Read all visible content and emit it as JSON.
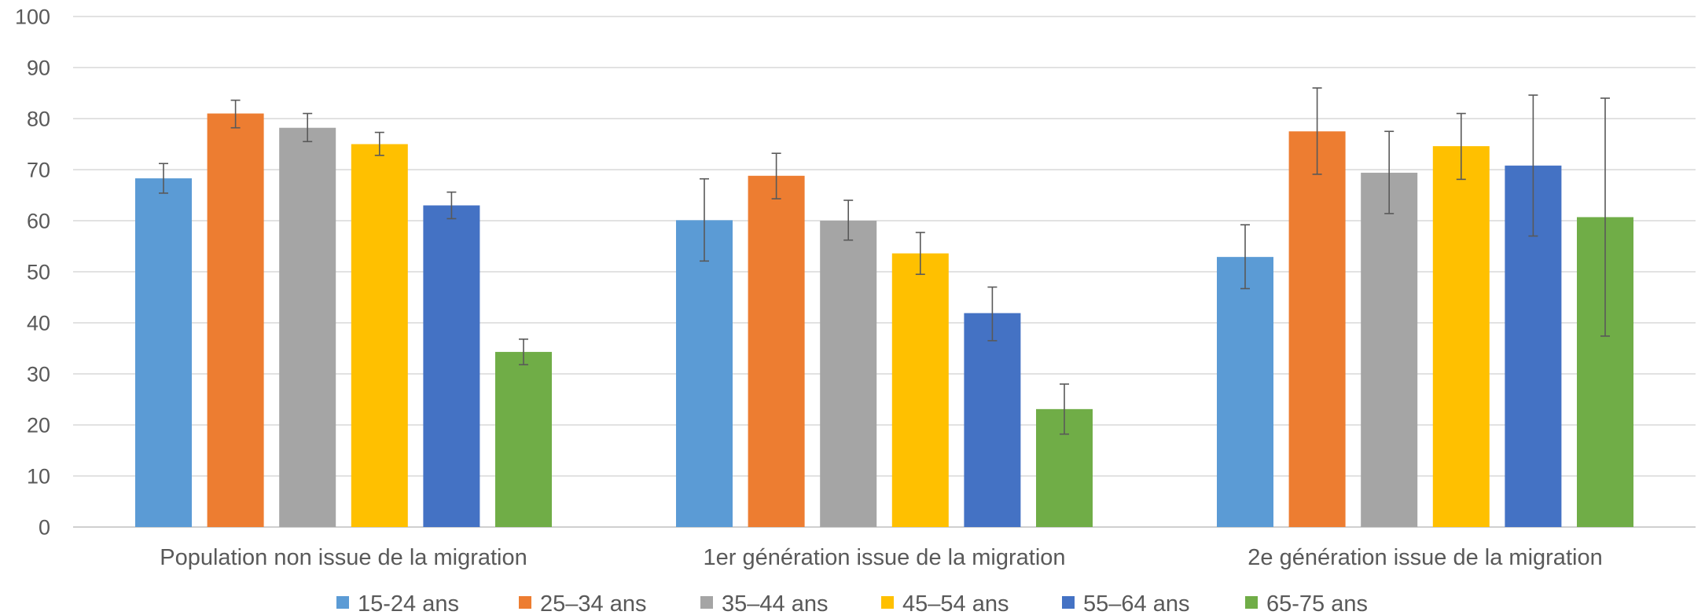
{
  "chart_data": {
    "type": "bar",
    "title": "",
    "xlabel": "",
    "ylabel": "",
    "ylim": [
      0,
      100
    ],
    "yticks": [
      0,
      10,
      20,
      30,
      40,
      50,
      60,
      70,
      80,
      90,
      100
    ],
    "grid": true,
    "legend_position": "bottom",
    "categories": [
      "Population non issue de la migration",
      "1er génération issue de la migration",
      "2e génération issue de la migration"
    ],
    "series": [
      {
        "name": "15-24 ans",
        "color": "#5b9bd5",
        "values": [
          68.3,
          60.1,
          52.9
        ],
        "err_low": [
          65.4,
          52.1,
          46.7
        ],
        "err_high": [
          71.2,
          68.2,
          59.2
        ]
      },
      {
        "name": "25–34 ans",
        "color": "#ed7d31",
        "values": [
          81.0,
          68.8,
          77.5
        ],
        "err_low": [
          78.2,
          64.3,
          69.1
        ],
        "err_high": [
          83.6,
          73.2,
          86.0
        ]
      },
      {
        "name": "35–44 ans",
        "color": "#a5a5a5",
        "values": [
          78.2,
          60.0,
          69.4
        ],
        "err_low": [
          75.5,
          56.2,
          61.4
        ],
        "err_high": [
          81.0,
          64.0,
          77.5
        ]
      },
      {
        "name": "45–54 ans",
        "color": "#ffc000",
        "values": [
          75.0,
          53.6,
          74.6
        ],
        "err_low": [
          72.8,
          49.5,
          68.1
        ],
        "err_high": [
          77.3,
          57.7,
          81.0
        ]
      },
      {
        "name": "55–64 ans",
        "color": "#4472c4",
        "values": [
          63.0,
          41.9,
          70.8
        ],
        "err_low": [
          60.4,
          36.5,
          57.0
        ],
        "err_high": [
          65.6,
          47.0,
          84.6
        ]
      },
      {
        "name": "65-75 ans",
        "color": "#70ad47",
        "values": [
          34.3,
          23.1,
          60.7
        ],
        "err_low": [
          31.8,
          18.2,
          37.4
        ],
        "err_high": [
          36.8,
          28.0,
          84.0
        ]
      }
    ]
  }
}
